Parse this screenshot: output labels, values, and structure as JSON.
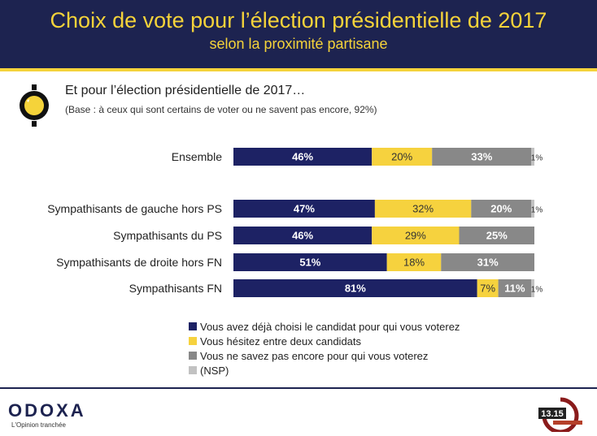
{
  "header": {
    "title": "Choix de vote pour l’élection présidentielle de 2017",
    "subtitle": "selon la proximité partisane"
  },
  "question": {
    "text": "Et pour l’élection présidentielle de 2017…",
    "base": "(Base : à ceux qui sont certains de voter ou ne savent pas encore, 92%)"
  },
  "colors": {
    "header_bg": "#1d2350",
    "accent_yellow": "#f5d33a",
    "navy": "#1d2264",
    "yellow": "#f6d23e",
    "gray": "#888888",
    "light_gray": "#c2c2c2"
  },
  "chart_data": {
    "type": "bar",
    "orientation": "horizontal",
    "stacked": true,
    "categories": [
      "Ensemble",
      "Sympathisants de gauche hors PS",
      "Sympathisants du PS",
      "Sympathisants de droite hors FN",
      "Sympathisants FN"
    ],
    "series": [
      {
        "name": "Vous avez déjà choisi le candidat pour qui vous voterez",
        "color": "#1d2264",
        "values": [
          46,
          47,
          46,
          51,
          81
        ]
      },
      {
        "name": "Vous hésitez entre deux candidats",
        "color": "#f6d23e",
        "values": [
          20,
          32,
          29,
          18,
          7
        ]
      },
      {
        "name": "Vous ne savez pas encore pour qui vous voterez",
        "color": "#888888",
        "values": [
          33,
          20,
          25,
          31,
          11
        ]
      },
      {
        "name": "(NSP)",
        "color": "#c2c2c2",
        "values": [
          1,
          1,
          0,
          0,
          1
        ]
      }
    ],
    "data_labels": [
      [
        "46%",
        "20%",
        "33%",
        "1%"
      ],
      [
        "47%",
        "32%",
        "20%",
        "1%"
      ],
      [
        "46%",
        "29%",
        "25%",
        ""
      ],
      [
        "51%",
        "18%",
        "31%",
        ""
      ],
      [
        "81%",
        "7%",
        "11%",
        "1%"
      ]
    ],
    "xlim": [
      0,
      100
    ],
    "legend_position": "bottom"
  },
  "footer": {
    "brand": "ODOXA",
    "tagline": "L'Opinion tranchée",
    "partner_logo": "13.15"
  }
}
